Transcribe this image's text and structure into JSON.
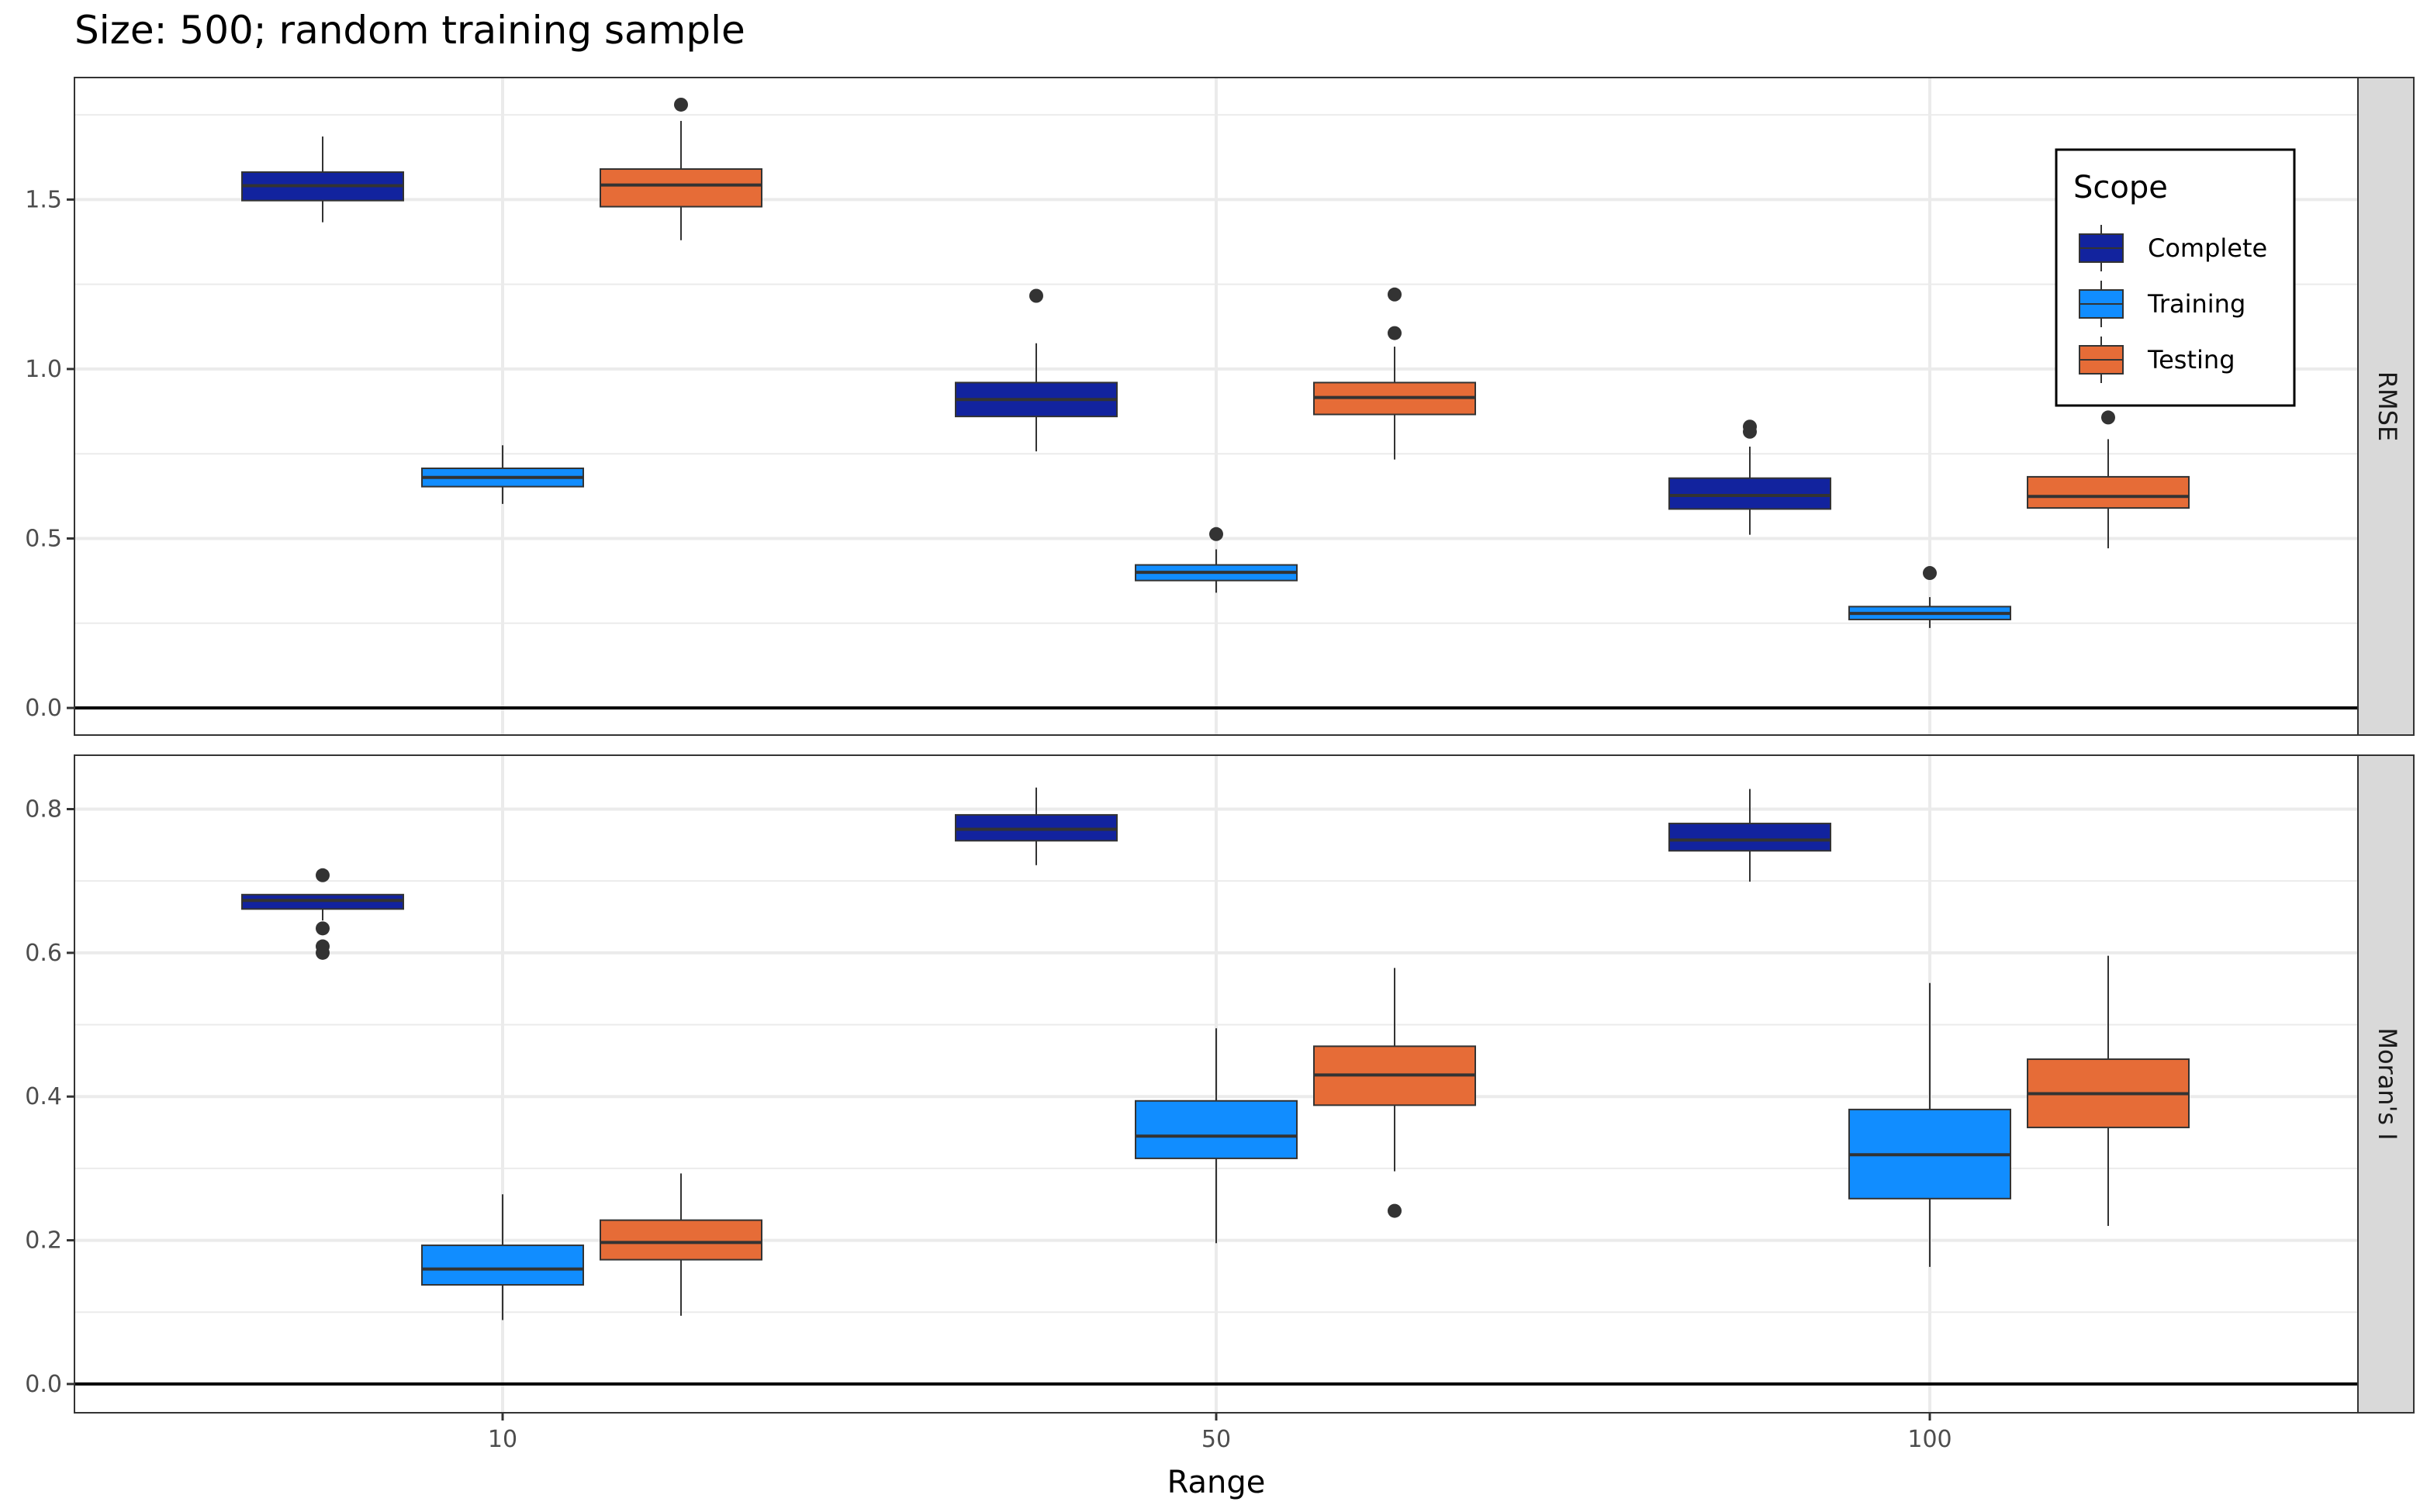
{
  "chart_data": {
    "type": "boxplot",
    "title": "Size: 500; random training sample",
    "xlabel": "Range",
    "categories": [
      "10",
      "50",
      "100"
    ],
    "legend": {
      "title": "Scope",
      "position": "top-right (inside top panel)",
      "entries": [
        {
          "name": "Complete",
          "color": "#12239E"
        },
        {
          "name": "Training",
          "color": "#118DFF"
        },
        {
          "name": "Testing",
          "color": "#E66C37"
        }
      ]
    },
    "grid": true,
    "reference_line": 0,
    "panels": [
      {
        "strip": "RMSE",
        "ylim": [
          -0.08,
          1.86
        ],
        "yticks": [
          0.0,
          0.5,
          1.0,
          1.5
        ],
        "ytick_labels": [
          "0.0",
          "0.5",
          "1.0",
          "1.5"
        ],
        "series": [
          {
            "name": "Complete",
            "boxes": [
              {
                "category": "10",
                "whisker_low": 1.433,
                "q1": 1.497,
                "median": 1.541,
                "q3": 1.581,
                "whisker_high": 1.686,
                "outliers": []
              },
              {
                "category": "50",
                "whisker_low": 0.757,
                "q1": 0.86,
                "median": 0.91,
                "q3": 0.96,
                "whisker_high": 1.076,
                "outliers": [
                  1.216
                ]
              },
              {
                "category": "100",
                "whisker_low": 0.511,
                "q1": 0.587,
                "median": 0.627,
                "q3": 0.678,
                "whisker_high": 0.771,
                "outliers": [
                  0.815,
                  0.83
                ]
              }
            ]
          },
          {
            "name": "Training",
            "boxes": [
              {
                "category": "10",
                "whisker_low": 0.602,
                "q1": 0.653,
                "median": 0.68,
                "q3": 0.707,
                "whisker_high": 0.775,
                "outliers": []
              },
              {
                "category": "50",
                "whisker_low": 0.34,
                "q1": 0.376,
                "median": 0.4,
                "q3": 0.422,
                "whisker_high": 0.468,
                "outliers": [
                  0.513
                ]
              },
              {
                "category": "100",
                "whisker_low": 0.236,
                "q1": 0.261,
                "median": 0.279,
                "q3": 0.299,
                "whisker_high": 0.327,
                "outliers": [
                  0.398
                ]
              }
            ]
          },
          {
            "name": "Testing",
            "boxes": [
              {
                "category": "10",
                "whisker_low": 1.38,
                "q1": 1.479,
                "median": 1.543,
                "q3": 1.59,
                "whisker_high": 1.732,
                "outliers": [
                  1.78
                ]
              },
              {
                "category": "50",
                "whisker_low": 0.733,
                "q1": 0.866,
                "median": 0.916,
                "q3": 0.96,
                "whisker_high": 1.066,
                "outliers": [
                  1.106,
                  1.22
                ]
              },
              {
                "category": "100",
                "whisker_low": 0.471,
                "q1": 0.59,
                "median": 0.624,
                "q3": 0.682,
                "whisker_high": 0.793,
                "outliers": [
                  0.857
                ]
              }
            ]
          }
        ]
      },
      {
        "strip": "Moran's I",
        "ylim": [
          -0.04,
          0.875
        ],
        "yticks": [
          0.0,
          0.2,
          0.4,
          0.6,
          0.8
        ],
        "ytick_labels": [
          "0.0",
          "0.2",
          "0.4",
          "0.6",
          "0.8"
        ],
        "series": [
          {
            "name": "Complete",
            "boxes": [
              {
                "category": "10",
                "whisker_low": 0.645,
                "q1": 0.661,
                "median": 0.673,
                "q3": 0.681,
                "whisker_high": 0.681,
                "outliers": [
                  0.708,
                  0.634,
                  0.609,
                  0.6
                ]
              },
              {
                "category": "50",
                "whisker_low": 0.722,
                "q1": 0.756,
                "median": 0.772,
                "q3": 0.792,
                "whisker_high": 0.83,
                "outliers": []
              },
              {
                "category": "100",
                "whisker_low": 0.699,
                "q1": 0.742,
                "median": 0.757,
                "q3": 0.78,
                "whisker_high": 0.828,
                "outliers": []
              }
            ]
          },
          {
            "name": "Training",
            "boxes": [
              {
                "category": "10",
                "whisker_low": 0.089,
                "q1": 0.138,
                "median": 0.16,
                "q3": 0.193,
                "whisker_high": 0.264,
                "outliers": []
              },
              {
                "category": "50",
                "whisker_low": 0.196,
                "q1": 0.314,
                "median": 0.345,
                "q3": 0.394,
                "whisker_high": 0.495,
                "outliers": []
              },
              {
                "category": "100",
                "whisker_low": 0.163,
                "q1": 0.258,
                "median": 0.319,
                "q3": 0.382,
                "whisker_high": 0.558,
                "outliers": []
              }
            ]
          },
          {
            "name": "Testing",
            "boxes": [
              {
                "category": "10",
                "whisker_low": 0.095,
                "q1": 0.173,
                "median": 0.197,
                "q3": 0.228,
                "whisker_high": 0.293,
                "outliers": []
              },
              {
                "category": "50",
                "whisker_low": 0.296,
                "q1": 0.388,
                "median": 0.43,
                "q3": 0.47,
                "whisker_high": 0.579,
                "outliers": [
                  0.241
                ]
              },
              {
                "category": "100",
                "whisker_low": 0.22,
                "q1": 0.357,
                "median": 0.404,
                "q3": 0.452,
                "whisker_high": 0.596,
                "outliers": []
              }
            ]
          }
        ]
      }
    ]
  }
}
